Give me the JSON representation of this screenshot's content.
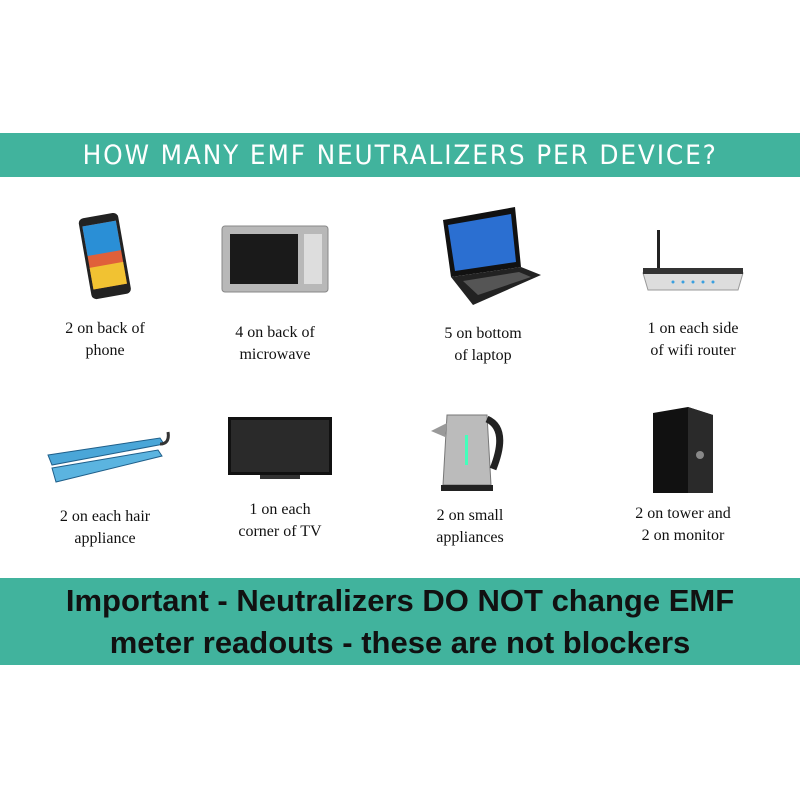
{
  "header": {
    "title": "HOW MANY EMF NEUTRALIZERS PER DEVICE?"
  },
  "devices": [
    {
      "icon": "phone-icon",
      "line1": "2 on back of",
      "line2": "phone"
    },
    {
      "icon": "microwave-icon",
      "line1": "4 on back of",
      "line2": "microwave"
    },
    {
      "icon": "laptop-icon",
      "line1": "5 on bottom",
      "line2": "of laptop"
    },
    {
      "icon": "wifi-router-icon",
      "line1": "1 on each side",
      "line2": "of wifi router"
    },
    {
      "icon": "hair-straightener-icon",
      "line1": "2 on each hair",
      "line2": "appliance"
    },
    {
      "icon": "tv-icon",
      "line1": "1 on each",
      "line2": "corner of TV"
    },
    {
      "icon": "kettle-icon",
      "line1": "2 on small",
      "line2": "appliances"
    },
    {
      "icon": "desktop-tower-icon",
      "line1": "2 on tower and",
      "line2": "2 on monitor"
    }
  ],
  "footer": {
    "line1": "Important - Neutralizers DO NOT change EMF",
    "line2": "meter readouts - these are not blockers"
  },
  "colors": {
    "accent": "#41b39d"
  }
}
